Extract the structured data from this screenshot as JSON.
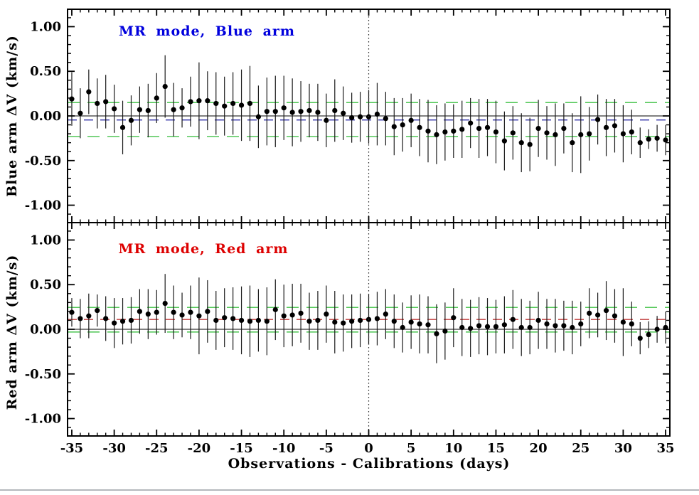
{
  "page": {
    "background": "#ffffff",
    "bottom_rule_color": "#b4b8bc"
  },
  "chart_data": {
    "type": "scatter",
    "xlabel": "Observations - Calibrations (days)",
    "xlim": [
      -35.5,
      35.5
    ],
    "ylim": [
      -1.195,
      1.195
    ],
    "xticks_major": [
      -35,
      -30,
      -25,
      -20,
      -15,
      -10,
      -5,
      0,
      5,
      10,
      15,
      20,
      25,
      30,
      35
    ],
    "xtick_labels": [
      "-35",
      "-30",
      "-25",
      "-20",
      "-15",
      "-10",
      "-5",
      "0",
      "5",
      "10",
      "15",
      "20",
      "25",
      "30",
      "35"
    ],
    "x_minor_step": 1,
    "yticks_major": [
      1.0,
      0.5,
      0.0,
      -0.5,
      -1.0
    ],
    "ytick_labels": [
      "1.00",
      "0.50",
      "0.00",
      "-0.50",
      "-1.00"
    ],
    "y_minor_step": 0.1,
    "grid": false,
    "vline_x": 0,
    "marker": {
      "color": "#000000",
      "radius": 3.6
    },
    "errorbar_color": "#1a1a1a",
    "x": [
      -35,
      -34,
      -33,
      -32,
      -31,
      -30,
      -29,
      -28,
      -27,
      -26,
      -25,
      -24,
      -23,
      -22,
      -21,
      -20,
      -19,
      -18,
      -17,
      -16,
      -15,
      -14,
      -13,
      -12,
      -11,
      -10,
      -9,
      -8,
      -7,
      -6,
      -5,
      -4,
      -3,
      -2,
      -1,
      0,
      1,
      2,
      3,
      4,
      5,
      6,
      7,
      8,
      9,
      10,
      11,
      12,
      13,
      14,
      15,
      16,
      17,
      18,
      19,
      20,
      21,
      22,
      23,
      24,
      25,
      26,
      27,
      28,
      29,
      30,
      31,
      32,
      33,
      34,
      35
    ],
    "panels": [
      {
        "id": "blue-arm",
        "title": "MR mode, Blue arm",
        "title_color": "#0000dd",
        "ylabel": "Blue arm ΔV (km/s)",
        "zero_line": 0.0,
        "mean_line": {
          "value": -0.045,
          "color": "#2929a3"
        },
        "sigma_lines": {
          "upper": 0.15,
          "lower": -0.23,
          "color": "#55c85a"
        },
        "y": [
          0.19,
          0.03,
          0.27,
          0.14,
          0.16,
          0.08,
          -0.13,
          -0.05,
          0.07,
          0.06,
          0.2,
          0.33,
          0.07,
          0.09,
          0.16,
          0.17,
          0.17,
          0.14,
          0.11,
          0.14,
          0.12,
          0.14,
          -0.01,
          0.05,
          0.05,
          0.09,
          0.04,
          0.05,
          0.06,
          0.04,
          -0.05,
          0.06,
          0.03,
          -0.02,
          -0.01,
          -0.01,
          0.02,
          -0.03,
          -0.12,
          -0.1,
          -0.05,
          -0.13,
          -0.17,
          -0.21,
          -0.18,
          -0.17,
          -0.15,
          -0.08,
          -0.14,
          -0.13,
          -0.18,
          -0.28,
          -0.19,
          -0.3,
          -0.32,
          -0.14,
          -0.19,
          -0.21,
          -0.14,
          -0.3,
          -0.21,
          -0.2,
          -0.04,
          -0.13,
          -0.11,
          -0.2,
          -0.18,
          -0.3,
          -0.26,
          -0.25,
          -0.27
        ],
        "yerr": [
          0.3,
          0.28,
          0.25,
          0.28,
          0.3,
          0.27,
          0.3,
          0.28,
          0.26,
          0.3,
          0.28,
          0.35,
          0.3,
          0.22,
          0.28,
          0.43,
          0.33,
          0.35,
          0.33,
          0.35,
          0.4,
          0.42,
          0.35,
          0.38,
          0.4,
          0.36,
          0.38,
          0.34,
          0.3,
          0.32,
          0.3,
          0.35,
          0.3,
          0.28,
          0.28,
          0.3,
          0.35,
          0.3,
          0.32,
          0.3,
          0.3,
          0.32,
          0.35,
          0.33,
          0.32,
          0.3,
          0.32,
          0.28,
          0.33,
          0.32,
          0.35,
          0.33,
          0.3,
          0.33,
          0.3,
          0.32,
          0.3,
          0.35,
          0.28,
          0.33,
          0.43,
          0.3,
          0.28,
          0.32,
          0.3,
          0.32,
          0.25,
          0.17,
          0.11,
          0.15,
          0.17
        ]
      },
      {
        "id": "red-arm",
        "title": "MR mode, Red arm",
        "title_color": "#dd0000",
        "ylabel": "Red arm ΔV (km/s)",
        "zero_line": 0.0,
        "mean_line": {
          "value": 0.11,
          "color": "#c03a3a"
        },
        "sigma_lines": {
          "upper": 0.245,
          "lower": -0.03,
          "color": "#55c85a"
        },
        "y": [
          0.19,
          0.12,
          0.15,
          0.21,
          0.12,
          0.07,
          0.09,
          0.1,
          0.2,
          0.17,
          0.19,
          0.29,
          0.19,
          0.16,
          0.19,
          0.15,
          0.2,
          0.1,
          0.13,
          0.12,
          0.1,
          0.09,
          0.1,
          0.09,
          0.22,
          0.15,
          0.16,
          0.18,
          0.09,
          0.1,
          0.17,
          0.08,
          0.07,
          0.09,
          0.1,
          0.11,
          0.12,
          0.17,
          0.09,
          0.02,
          0.08,
          0.06,
          0.05,
          -0.05,
          -0.02,
          0.13,
          0.02,
          0.01,
          0.04,
          0.03,
          0.03,
          0.05,
          0.11,
          0.02,
          0.02,
          0.1,
          0.06,
          0.04,
          0.04,
          0.02,
          0.06,
          0.18,
          0.16,
          0.21,
          0.15,
          0.08,
          0.06,
          -0.1,
          -0.06,
          0.0,
          0.02
        ],
        "yerr": [
          0.16,
          0.22,
          0.25,
          0.18,
          0.25,
          0.28,
          0.26,
          0.26,
          0.25,
          0.28,
          0.25,
          0.33,
          0.3,
          0.25,
          0.3,
          0.43,
          0.35,
          0.33,
          0.33,
          0.35,
          0.38,
          0.4,
          0.35,
          0.38,
          0.34,
          0.35,
          0.35,
          0.33,
          0.32,
          0.33,
          0.32,
          0.35,
          0.32,
          0.3,
          0.3,
          0.28,
          0.3,
          0.28,
          0.3,
          0.28,
          0.3,
          0.33,
          0.32,
          0.33,
          0.32,
          0.33,
          0.32,
          0.32,
          0.32,
          0.32,
          0.3,
          0.32,
          0.33,
          0.32,
          0.3,
          0.32,
          0.28,
          0.3,
          0.28,
          0.3,
          0.25,
          0.28,
          0.25,
          0.33,
          0.3,
          0.38,
          0.25,
          0.18,
          0.15,
          0.15,
          0.18
        ]
      }
    ]
  }
}
